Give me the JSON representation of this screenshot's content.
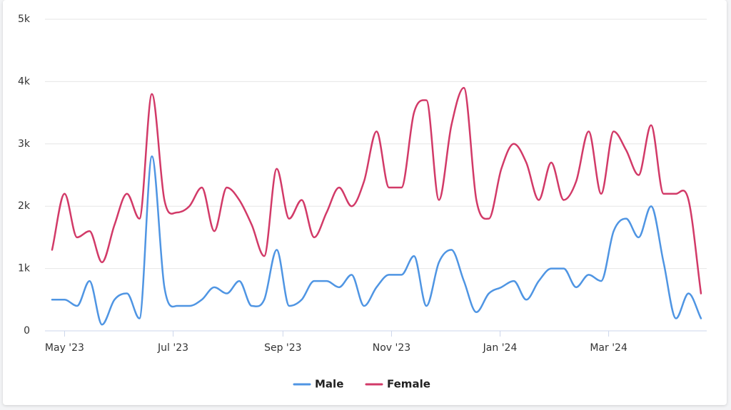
{
  "chart_data": {
    "type": "line",
    "series": [
      {
        "name": "Male",
        "color": "#4f95e3",
        "values": [
          500,
          500,
          400,
          800,
          100,
          500,
          600,
          200,
          2800,
          700,
          400,
          400,
          500,
          700,
          600,
          800,
          400,
          500,
          1300,
          400,
          500,
          800,
          800,
          700,
          900,
          400,
          700,
          900,
          900,
          1200,
          400,
          1100,
          1300,
          800,
          300,
          600,
          700,
          800,
          500,
          800,
          1000,
          1000,
          700,
          900,
          800,
          1600,
          1800,
          1500,
          2000,
          1100,
          200,
          600,
          200
        ]
      },
      {
        "name": "Female",
        "color": "#d23a68",
        "values": [
          1300,
          2200,
          1500,
          1600,
          1100,
          1700,
          2200,
          1800,
          3800,
          2100,
          1900,
          2000,
          2300,
          1600,
          2300,
          2100,
          1700,
          1200,
          2600,
          1800,
          2100,
          1500,
          1900,
          2300,
          2000,
          2400,
          3200,
          2300,
          2300,
          3500,
          3700,
          2100,
          3300,
          3900,
          2100,
          1800,
          2600,
          3000,
          2700,
          2100,
          2700,
          2100,
          2400,
          3200,
          2200,
          3200,
          2900,
          2500,
          3300,
          2200,
          2200,
          2100,
          600
        ]
      }
    ],
    "xlim": [
      -0.57,
      52.46
    ],
    "xticks": [
      {
        "value": 1,
        "label": "May '23"
      },
      {
        "value": 9.7,
        "label": "Jul '23"
      },
      {
        "value": 18.5,
        "label": "Sep '23"
      },
      {
        "value": 27.2,
        "label": "Nov '23"
      },
      {
        "value": 35.9,
        "label": "Jan '24"
      },
      {
        "value": 44.6,
        "label": "Mar '24"
      }
    ],
    "ylim": [
      0,
      5000
    ],
    "yticks": [
      0,
      {
        "value": 1000,
        "label": "1k"
      },
      {
        "value": 2000,
        "label": "2k"
      },
      {
        "value": 3000,
        "label": "3k"
      },
      {
        "value": 4000,
        "label": "4k"
      },
      {
        "value": 5000,
        "label": "5k"
      }
    ],
    "grid": true,
    "legend": "bottom"
  }
}
